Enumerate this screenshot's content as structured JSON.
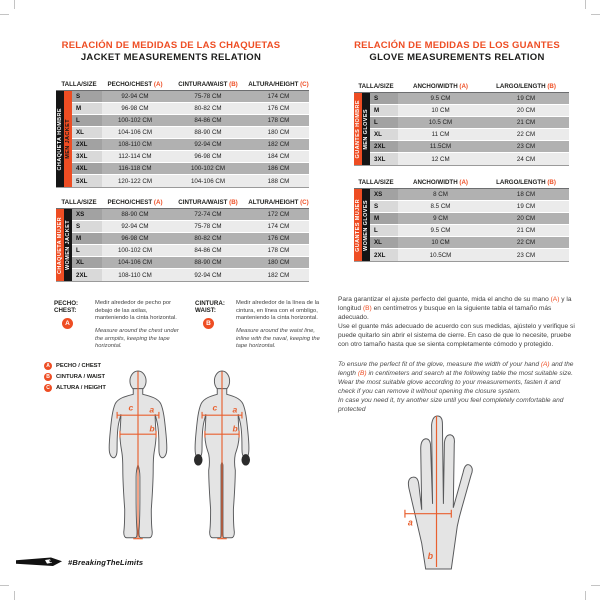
{
  "colors": {
    "accent": "#EE4D23",
    "row_dark": "#B1B1B1",
    "row_light": "#EBEBEB",
    "ink": "#1D1D1B"
  },
  "jackets": {
    "title_es": "RELACIÓN DE MEDIDAS DE LAS CHAQUETAS",
    "title_en": "JACKET MEASUREMENTS RELATION",
    "headers": {
      "size": "TALLA/SIZE",
      "chest": "PECHO/CHEST",
      "chest_letter": "(A)",
      "waist": "CINTURA/WAIST",
      "waist_letter": "(B)",
      "height": "ALTURA/HEIGHT",
      "height_letter": "(C)"
    },
    "men": {
      "side_es": "CHAQUETA HOMBRE",
      "side_en": "MEN JACKET",
      "rows": [
        [
          "S",
          "92-94 CM",
          "75-78 CM",
          "174 CM"
        ],
        [
          "M",
          "96-98 CM",
          "80-82 CM",
          "176 CM"
        ],
        [
          "L",
          "100-102 CM",
          "84-86 CM",
          "178 CM"
        ],
        [
          "XL",
          "104-106 CM",
          "88-90 CM",
          "180 CM"
        ],
        [
          "2XL",
          "108-110 CM",
          "92-94 CM",
          "182 CM"
        ],
        [
          "3XL",
          "112-114 CM",
          "96-98 CM",
          "184 CM"
        ],
        [
          "4XL",
          "116-118 CM",
          "100-102 CM",
          "186 CM"
        ],
        [
          "5XL",
          "120-122 CM",
          "104-106 CM",
          "188 CM"
        ]
      ]
    },
    "women": {
      "side_es": "CHAQUETA MUJER",
      "side_en": "WOMEN JACKET",
      "rows": [
        [
          "XS",
          "88-90 CM",
          "72-74 CM",
          "172 CM"
        ],
        [
          "S",
          "92-94 CM",
          "75-78 CM",
          "174 CM"
        ],
        [
          "M",
          "96-98 CM",
          "80-82 CM",
          "176 CM"
        ],
        [
          "L",
          "100-102 CM",
          "84-86 CM",
          "178 CM"
        ],
        [
          "XL",
          "104-106 CM",
          "88-90 CM",
          "180 CM"
        ],
        [
          "2XL",
          "108-110 CM",
          "92-94 CM",
          "182 CM"
        ]
      ]
    },
    "chest_info": {
      "label_es": "PECHO:",
      "label_en": "CHEST:",
      "letter": "A",
      "text_es": "Medir alrededor de pecho por debajo de las axilas, manteniendo la cinta horizontal.",
      "text_en": "Measure around the chest under the armpits, keeping the tape horizontal."
    },
    "waist_info": {
      "label_es": "CINTURA:",
      "label_en": "WAIST:",
      "letter": "B",
      "text_es": "Medir alrededor de la línea de la cintura, en línea con el ombligo, manteniendo la cinta horizontal.",
      "text_en": "Measure around the waist line, inline with the naval, keeping the tape horizontal."
    },
    "legend": [
      {
        "letter": "A",
        "label": "PECHO / CHEST"
      },
      {
        "letter": "B",
        "label": "CINTURA / WAIST"
      },
      {
        "letter": "C",
        "label": "ALTURA / HEIGHT"
      }
    ],
    "diagram": {
      "a": "a",
      "b": "b",
      "c": "c"
    }
  },
  "gloves": {
    "title_es": "RELACIÓN DE MEDIDAS DE LOS GUANTES",
    "title_en": "GLOVE MEASUREMENTS RELATION",
    "headers": {
      "size": "TALLA/SIZE",
      "width": "ANCHO/WIDTH",
      "width_letter": "(A)",
      "length": "LARGO/LENGTH",
      "length_letter": "(B)"
    },
    "men": {
      "side_es": "GUANTES HOMBRE",
      "side_en": "MEN GLOVES",
      "rows": [
        [
          "S",
          "9.5 CM",
          "19 CM"
        ],
        [
          "M",
          "10 CM",
          "20 CM"
        ],
        [
          "L",
          "10.5 CM",
          "21 CM"
        ],
        [
          "XL",
          "11 CM",
          "22 CM"
        ],
        [
          "2XL",
          "11.5CM",
          "23 CM"
        ],
        [
          "3XL",
          "12 CM",
          "24 CM"
        ]
      ]
    },
    "women": {
      "side_es": "GUANTES MUJER",
      "side_en": "WOMEN GLOVES",
      "rows": [
        [
          "XS",
          "8 CM",
          "18 CM"
        ],
        [
          "S",
          "8.5 CM",
          "19 CM"
        ],
        [
          "M",
          "9 CM",
          "20 CM"
        ],
        [
          "L",
          "9.5 CM",
          "21 CM"
        ],
        [
          "XL",
          "10 CM",
          "22 CM"
        ],
        [
          "2XL",
          "10.5CM",
          "23 CM"
        ]
      ]
    },
    "para_es": {
      "s1": "Para garantizar el ajuste perfecto del guante, mida el ancho de su mano ",
      "a": "(A)",
      "s2": " y la longitud ",
      "b": "(B)",
      "s3": " en centímetros y busque en la siguiente tabla el tamaño más adecuado.",
      "s4": "Use el guante más adecuado de acuerdo con sus medidas, ajústelo y verifique si puede quitarlo sin abrir el sistema de cierre. En caso de que lo necesite, pruebe con otro tamaño hasta que se sienta completamente cómodo y protegido."
    },
    "para_en": {
      "s1": "To ensure the perfect fit of the glove, measure the width of your hand ",
      "a": "(A)",
      "s2": " and the length ",
      "b": "(B)",
      "s3": " in centimeters and search at the following table the most suitable size.  Wear the most suitable glove according to your measurements, fasten it and check if you can remove it without opening the closure system.",
      "s4": "In case you need it, try another size until you feel completely comfortable and protected"
    },
    "diagram": {
      "a": "a",
      "b": "b"
    }
  },
  "footer": {
    "hashtag": "#BreakingTheLimits"
  }
}
